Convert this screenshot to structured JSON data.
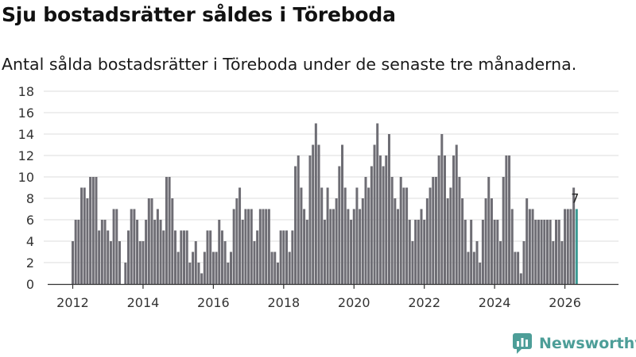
{
  "title": "Sju bostadsrätter såldes i Töreboda",
  "subtitle": "Antal sålda bostadsrätter i Töreboda under de senaste tre månaderna.",
  "brand": {
    "name": "Newsworthy",
    "icon": "newsworthy-logo-icon"
  },
  "colors": {
    "bar": "#6e6d74",
    "highlight": "#3a9a93",
    "grid": "#dddddd",
    "axis": "#333333",
    "brand": "#4d9e98"
  },
  "chart_data": {
    "type": "bar",
    "title": "Sju bostadsrätter såldes i Töreboda",
    "subtitle": "Antal sålda bostadsrätter i Töreboda under de senaste tre månaderna.",
    "xlabel": "",
    "ylabel": "",
    "ylim": [
      0,
      18
    ],
    "yticks": [
      "0",
      "2",
      "4",
      "6",
      "8",
      "10",
      "12",
      "14",
      "16",
      "18"
    ],
    "grid": true,
    "x_start": "2012-01",
    "xticks": [
      "2012",
      "2014",
      "2016",
      "2018",
      "2020",
      "2022",
      "2024",
      "2026"
    ],
    "last_label": "7",
    "values": [
      4,
      6,
      6,
      9,
      9,
      8,
      10,
      10,
      10,
      5,
      6,
      6,
      5,
      4,
      7,
      7,
      4,
      0,
      2,
      5,
      7,
      7,
      6,
      4,
      4,
      6,
      8,
      8,
      6,
      7,
      6,
      5,
      10,
      10,
      8,
      5,
      3,
      5,
      5,
      5,
      2,
      3,
      4,
      2,
      1,
      3,
      5,
      5,
      3,
      3,
      6,
      5,
      4,
      2,
      3,
      7,
      8,
      9,
      6,
      7,
      7,
      7,
      4,
      5,
      7,
      7,
      7,
      7,
      3,
      3,
      2,
      5,
      5,
      5,
      3,
      5,
      11,
      12,
      9,
      7,
      6,
      12,
      13,
      15,
      13,
      9,
      6,
      9,
      7,
      7,
      8,
      11,
      13,
      9,
      7,
      6,
      7,
      9,
      7,
      8,
      10,
      9,
      11,
      13,
      15,
      12,
      11,
      12,
      14,
      10,
      8,
      7,
      10,
      9,
      9,
      6,
      4,
      6,
      6,
      7,
      6,
      8,
      9,
      10,
      10,
      12,
      14,
      12,
      8,
      9,
      12,
      13,
      10,
      8,
      6,
      3,
      6,
      3,
      4,
      2,
      6,
      8,
      10,
      8,
      6,
      6,
      4,
      10,
      12,
      12,
      7,
      3,
      3,
      1,
      4,
      8,
      7,
      7,
      6,
      6,
      6,
      6,
      6,
      6,
      4,
      6,
      6,
      4,
      7,
      7,
      7,
      9,
      7
    ]
  }
}
